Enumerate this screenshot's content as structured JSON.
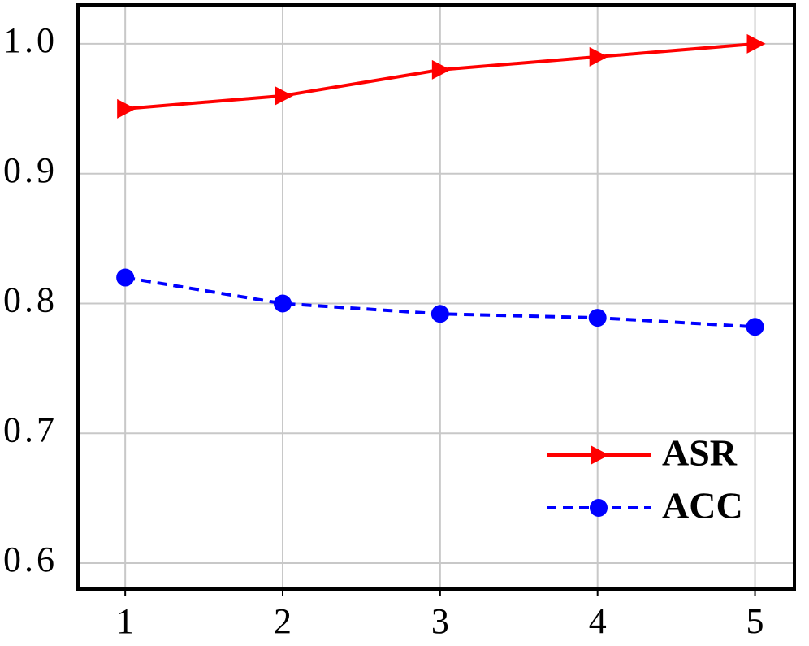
{
  "chart_data": {
    "type": "line",
    "x": [
      1,
      2,
      3,
      4,
      5
    ],
    "series": [
      {
        "name": "ASR",
        "color": "#ff0000",
        "marker": "triangle-right",
        "line_style": "solid",
        "values": [
          0.95,
          0.96,
          0.98,
          0.99,
          1.0
        ]
      },
      {
        "name": "ACC",
        "color": "#0000ff",
        "marker": "circle",
        "line_style": "dashed",
        "values": [
          0.82,
          0.8,
          0.792,
          0.789,
          0.782
        ]
      }
    ],
    "xlim": [
      0.7,
      5.25
    ],
    "xticks": [
      1,
      2,
      3,
      4,
      5
    ],
    "ylim": [
      0.58,
      1.03
    ],
    "yticks": [
      0.6,
      0.7,
      0.8,
      0.9,
      {
        "value": 1.0,
        "label": "1.0"
      }
    ],
    "grid": true,
    "legend": "lower right"
  }
}
